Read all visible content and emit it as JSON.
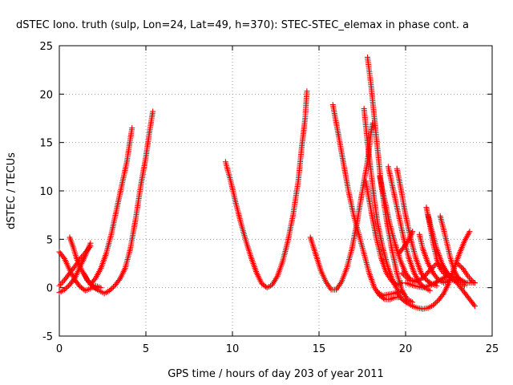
{
  "chart_data": {
    "type": "scatter",
    "title": "dSTEC Iono. truth (sulp, Lon=24, Lat=49, h=370): STEC-STEC_elemax in phase cont. a",
    "xlabel": "GPS time / hours of day 203 of year 2011",
    "ylabel": "dSTEC  / TECUs",
    "xlim": [
      0,
      25
    ],
    "ylim": [
      -5,
      25
    ],
    "x_ticks": [
      0,
      5,
      10,
      15,
      20,
      25
    ],
    "y_ticks": [
      -5,
      0,
      5,
      10,
      15,
      20,
      25
    ],
    "x_tick_labels": [
      "0",
      "5",
      "10",
      "15",
      "20",
      "25"
    ],
    "y_tick_labels": [
      "-5",
      "0",
      "5",
      "10",
      "15",
      "20",
      "25"
    ],
    "grid": true,
    "marker": "+",
    "color": "#ff0000",
    "series": [
      {
        "points": [
          [
            0.0,
            3.7
          ],
          [
            0.3,
            3.0
          ],
          [
            0.6,
            1.8
          ],
          [
            0.9,
            0.8
          ],
          [
            1.2,
            0.1
          ],
          [
            1.5,
            -0.3
          ],
          [
            1.8,
            -0.1
          ],
          [
            2.1,
            0.2
          ],
          [
            2.4,
            0.0
          ]
        ]
      },
      {
        "points": [
          [
            0.0,
            -0.5
          ],
          [
            0.3,
            -0.2
          ],
          [
            0.6,
            0.3
          ],
          [
            0.9,
            1.0
          ],
          [
            1.2,
            2.2
          ],
          [
            1.5,
            3.3
          ],
          [
            1.8,
            4.6
          ]
        ]
      },
      {
        "points": [
          [
            0.0,
            0.2
          ],
          [
            0.3,
            0.8
          ],
          [
            0.6,
            1.5
          ],
          [
            0.9,
            2.2
          ],
          [
            1.2,
            3.0
          ],
          [
            1.5,
            3.6
          ],
          [
            1.8,
            4.3
          ]
        ]
      },
      {
        "points": [
          [
            0.6,
            5.2
          ],
          [
            0.8,
            4.2
          ],
          [
            1.0,
            3.0
          ],
          [
            1.3,
            1.8
          ],
          [
            1.6,
            0.8
          ],
          [
            1.9,
            0.2
          ],
          [
            2.2,
            -0.2
          ]
        ]
      },
      {
        "points": [
          [
            1.4,
            1.5
          ],
          [
            1.7,
            0.6
          ],
          [
            2.0,
            0.0
          ],
          [
            2.3,
            -0.3
          ],
          [
            2.6,
            -0.6
          ],
          [
            2.9,
            -0.3
          ],
          [
            3.2,
            0.2
          ],
          [
            3.5,
            0.9
          ],
          [
            3.8,
            2.0
          ],
          [
            4.1,
            4.0
          ],
          [
            4.4,
            7.0
          ],
          [
            4.7,
            10.5
          ],
          [
            5.0,
            13.5
          ],
          [
            5.2,
            16.0
          ],
          [
            5.4,
            18.2
          ]
        ]
      },
      {
        "points": [
          [
            1.8,
            0.3
          ],
          [
            2.1,
            1.0
          ],
          [
            2.4,
            2.0
          ],
          [
            2.7,
            3.5
          ],
          [
            3.0,
            5.5
          ],
          [
            3.3,
            8.0
          ],
          [
            3.6,
            10.5
          ],
          [
            3.9,
            13.0
          ],
          [
            4.2,
            16.5
          ]
        ]
      },
      {
        "points": [
          [
            9.6,
            13.0
          ],
          [
            9.9,
            11.0
          ],
          [
            10.2,
            8.7
          ],
          [
            10.5,
            6.6
          ],
          [
            10.8,
            4.7
          ],
          [
            11.1,
            3.0
          ],
          [
            11.4,
            1.5
          ],
          [
            11.7,
            0.4
          ],
          [
            12.0,
            0.0
          ],
          [
            12.3,
            0.3
          ],
          [
            12.6,
            1.2
          ],
          [
            12.9,
            2.7
          ],
          [
            13.2,
            4.8
          ],
          [
            13.5,
            7.5
          ],
          [
            13.8,
            11.0
          ],
          [
            14.0,
            14.5
          ],
          [
            14.2,
            17.5
          ],
          [
            14.3,
            20.3
          ]
        ]
      },
      {
        "points": [
          [
            14.5,
            5.2
          ],
          [
            14.8,
            3.5
          ],
          [
            15.1,
            1.8
          ],
          [
            15.4,
            0.6
          ],
          [
            15.7,
            -0.2
          ],
          [
            16.0,
            -0.2
          ],
          [
            16.3,
            0.6
          ],
          [
            16.6,
            2.0
          ],
          [
            16.9,
            4.0
          ],
          [
            17.2,
            6.8
          ],
          [
            17.5,
            10.0
          ],
          [
            17.8,
            13.0
          ],
          [
            18.0,
            16.0
          ],
          [
            18.1,
            17.0
          ]
        ]
      },
      {
        "points": [
          [
            15.8,
            18.9
          ],
          [
            16.1,
            16.0
          ],
          [
            16.4,
            13.0
          ],
          [
            16.7,
            10.0
          ],
          [
            17.0,
            7.5
          ],
          [
            17.3,
            5.5
          ],
          [
            17.6,
            3.5
          ],
          [
            17.9,
            1.5
          ],
          [
            18.2,
            0.0
          ],
          [
            18.5,
            -0.8
          ],
          [
            18.8,
            -1.2
          ],
          [
            19.1,
            -1.2
          ],
          [
            19.4,
            -1.0
          ],
          [
            19.7,
            -1.0
          ]
        ]
      },
      {
        "points": [
          [
            17.6,
            18.5
          ],
          [
            17.8,
            15.0
          ],
          [
            18.0,
            12.0
          ],
          [
            18.2,
            9.0
          ],
          [
            18.4,
            6.5
          ],
          [
            18.7,
            4.0
          ],
          [
            19.0,
            2.0
          ],
          [
            19.3,
            0.5
          ],
          [
            19.6,
            -0.4
          ],
          [
            19.9,
            -0.6
          ]
        ]
      },
      {
        "points": [
          [
            17.8,
            23.8
          ],
          [
            18.0,
            21.0
          ],
          [
            18.2,
            17.5
          ],
          [
            18.4,
            14.0
          ],
          [
            18.6,
            10.5
          ],
          [
            18.9,
            7.0
          ],
          [
            19.2,
            4.0
          ],
          [
            19.5,
            1.5
          ],
          [
            19.8,
            -0.3
          ],
          [
            20.1,
            -1.2
          ],
          [
            20.4,
            -1.5
          ]
        ]
      },
      {
        "points": [
          [
            17.7,
            11.0
          ],
          [
            18.0,
            8.0
          ],
          [
            18.3,
            5.2
          ],
          [
            18.6,
            3.0
          ],
          [
            18.9,
            1.5
          ],
          [
            19.2,
            0.7
          ],
          [
            19.5,
            0.3
          ],
          [
            19.8,
            0.5
          ]
        ]
      },
      {
        "points": [
          [
            18.5,
            11.5
          ],
          [
            18.8,
            9.0
          ],
          [
            19.1,
            6.5
          ],
          [
            19.4,
            4.5
          ],
          [
            19.7,
            2.8
          ],
          [
            20.0,
            1.5
          ],
          [
            20.3,
            0.8
          ],
          [
            20.6,
            0.7
          ]
        ]
      },
      {
        "points": [
          [
            19.0,
            12.5
          ],
          [
            19.3,
            10.0
          ],
          [
            19.6,
            7.5
          ],
          [
            19.9,
            5.0
          ],
          [
            20.2,
            3.0
          ],
          [
            20.5,
            1.5
          ],
          [
            20.8,
            0.5
          ],
          [
            21.1,
            0.0
          ],
          [
            21.4,
            -0.3
          ]
        ]
      },
      {
        "points": [
          [
            19.5,
            12.3
          ],
          [
            19.7,
            10.5
          ],
          [
            20.0,
            7.5
          ],
          [
            20.3,
            5.0
          ],
          [
            20.6,
            3.0
          ],
          [
            20.9,
            1.5
          ],
          [
            21.2,
            0.8
          ],
          [
            21.5,
            0.4
          ],
          [
            21.8,
            0.2
          ]
        ]
      },
      {
        "points": [
          [
            19.6,
            3.5
          ],
          [
            19.9,
            4.2
          ],
          [
            20.2,
            5.0
          ],
          [
            20.4,
            5.8
          ]
        ]
      },
      {
        "points": [
          [
            19.5,
            -0.5
          ],
          [
            19.8,
            -1.2
          ],
          [
            20.1,
            -1.6
          ],
          [
            20.4,
            -1.9
          ],
          [
            20.7,
            -2.1
          ],
          [
            21.0,
            -2.2
          ],
          [
            21.3,
            -2.1
          ],
          [
            21.6,
            -1.8
          ],
          [
            21.9,
            -1.3
          ],
          [
            22.2,
            -0.6
          ],
          [
            22.5,
            0.5
          ],
          [
            22.8,
            2.0
          ],
          [
            23.1,
            3.5
          ],
          [
            23.4,
            4.8
          ],
          [
            23.7,
            5.8
          ]
        ]
      },
      {
        "points": [
          [
            20.8,
            5.5
          ],
          [
            21.0,
            4.0
          ],
          [
            21.3,
            2.5
          ],
          [
            21.6,
            1.5
          ],
          [
            21.9,
            0.8
          ],
          [
            22.2,
            0.5
          ],
          [
            22.5,
            0.8
          ]
        ]
      },
      {
        "points": [
          [
            21.2,
            8.3
          ],
          [
            21.4,
            6.5
          ],
          [
            21.6,
            4.5
          ],
          [
            21.8,
            3.0
          ],
          [
            22.0,
            2.0
          ],
          [
            22.2,
            1.5
          ],
          [
            22.5,
            1.2
          ]
        ]
      },
      {
        "points": [
          [
            21.3,
            7.5
          ],
          [
            21.5,
            6.0
          ],
          [
            21.8,
            4.0
          ],
          [
            22.1,
            2.5
          ],
          [
            22.4,
            1.5
          ],
          [
            22.7,
            0.8
          ],
          [
            23.0,
            0.5
          ]
        ]
      },
      {
        "points": [
          [
            22.0,
            7.4
          ],
          [
            22.2,
            6.0
          ],
          [
            22.4,
            4.5
          ],
          [
            22.6,
            3.0
          ],
          [
            22.8,
            1.8
          ],
          [
            23.1,
            0.8
          ],
          [
            23.4,
            0.2
          ]
        ]
      },
      {
        "points": [
          [
            22.8,
            1.0
          ],
          [
            23.1,
            0.2
          ],
          [
            23.4,
            -0.5
          ],
          [
            23.7,
            -1.2
          ],
          [
            24.0,
            -1.9
          ]
        ]
      },
      {
        "points": [
          [
            20.0,
            0.5
          ],
          [
            20.5,
            0.2
          ],
          [
            21.0,
            0.0
          ],
          [
            21.5,
            0.3
          ],
          [
            22.0,
            0.8
          ],
          [
            22.5,
            1.3
          ],
          [
            23.0,
            1.0
          ],
          [
            23.5,
            0.5
          ],
          [
            24.0,
            0.5
          ]
        ]
      },
      {
        "points": [
          [
            19.8,
            1.5
          ],
          [
            20.2,
            0.8
          ],
          [
            20.6,
            0.6
          ],
          [
            21.0,
            1.0
          ],
          [
            21.4,
            1.8
          ],
          [
            21.8,
            2.5
          ],
          [
            22.2,
            2.0
          ],
          [
            22.6,
            1.0
          ]
        ]
      },
      {
        "points": [
          [
            23.0,
            2.5
          ],
          [
            23.3,
            2.0
          ],
          [
            23.6,
            1.2
          ],
          [
            23.9,
            0.6
          ],
          [
            24.0,
            0.5
          ]
        ]
      },
      {
        "points": [
          [
            18.4,
            -0.5
          ],
          [
            18.7,
            -0.8
          ],
          [
            19.0,
            -0.7
          ],
          [
            19.3,
            -0.6
          ],
          [
            19.6,
            -0.4
          ]
        ]
      }
    ]
  }
}
